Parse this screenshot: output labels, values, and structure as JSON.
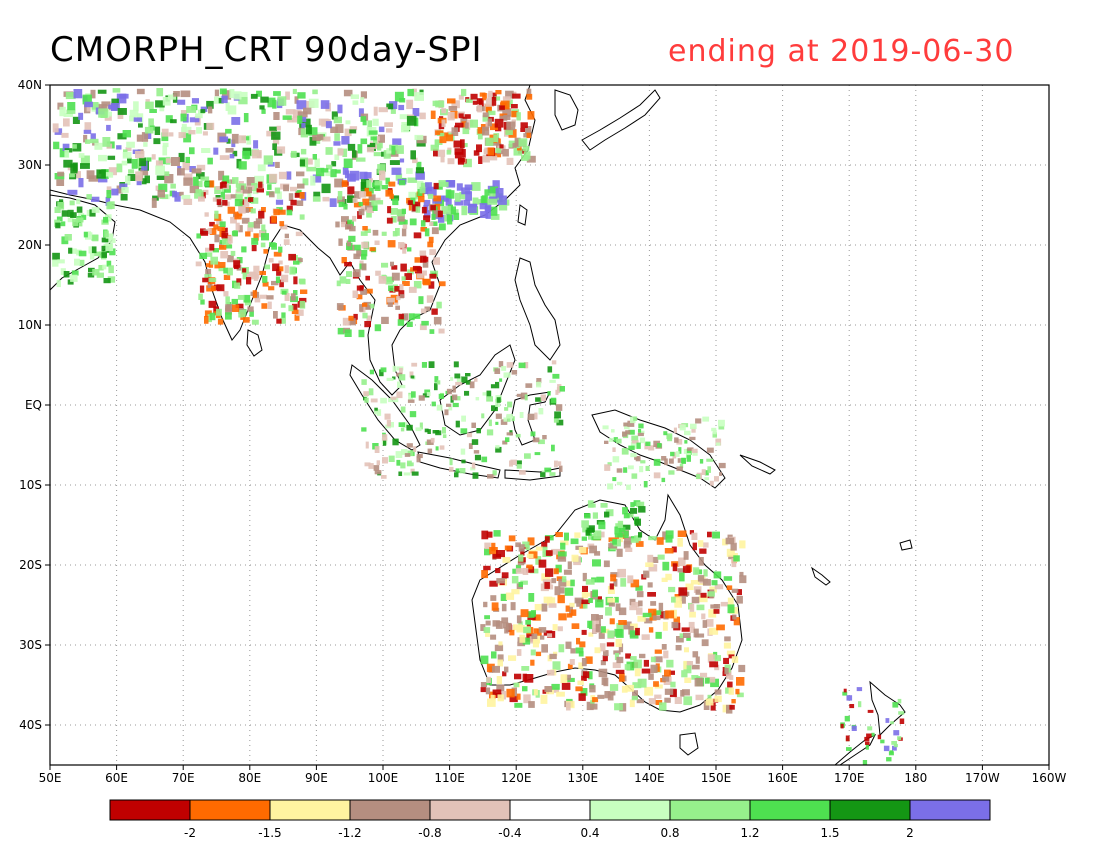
{
  "title": {
    "left": "CMORPH_CRT 90day-SPI",
    "right": "ending at 2019-06-30"
  },
  "axes": {
    "lat_labels": [
      "40N",
      "30N",
      "20N",
      "10N",
      "EQ",
      "10S",
      "20S",
      "30S",
      "40S"
    ],
    "lon_labels": [
      "50E",
      "60E",
      "70E",
      "80E",
      "90E",
      "100E",
      "110E",
      "120E",
      "130E",
      "140E",
      "150E",
      "160E",
      "170E",
      "180",
      "170W",
      "160W"
    ],
    "lat_range": [
      -45,
      40
    ],
    "lon_range": [
      50,
      200
    ],
    "grid": "dotted"
  },
  "colorbar": {
    "colors": [
      "#c00000",
      "#ff6a00",
      "#fff4a0",
      "#b58e80",
      "#e3c2b8",
      "#ffffff",
      "#c8ffc0",
      "#96f08c",
      "#4ee050",
      "#149614",
      "#7b6fe8"
    ],
    "labels": [
      "-2",
      "-1.5",
      "-1.2",
      "-0.8",
      "-0.4",
      "0.4",
      "0.8",
      "1.2",
      "1.5",
      "2"
    ]
  },
  "colors": {
    "title_right": "#ff3c3c",
    "land_outline": "#000000"
  }
}
